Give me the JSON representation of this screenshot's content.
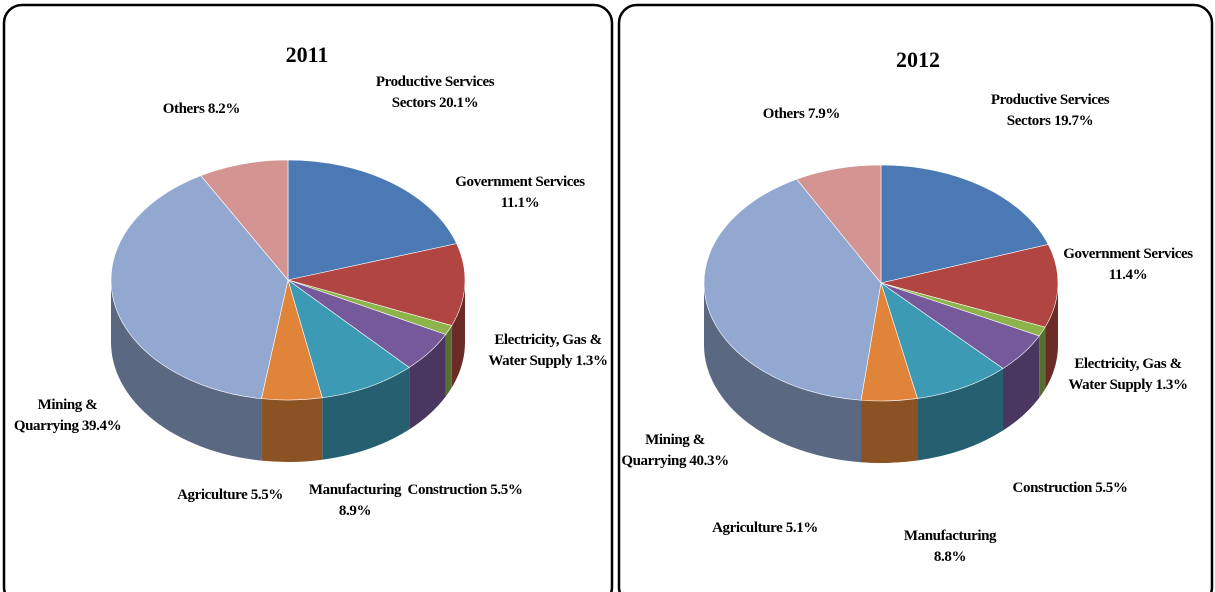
{
  "chart_data": [
    {
      "type": "pie",
      "title": "2011",
      "categories": [
        "Productive Services Sectors",
        "Government Services",
        "Electricity, Gas & Water Supply",
        "Construction",
        "Manufacturing",
        "Agriculture",
        "Mining & Quarrying",
        "Others"
      ],
      "values": [
        20.1,
        11.1,
        1.3,
        5.5,
        8.9,
        5.5,
        39.4,
        8.2
      ],
      "value_labels": [
        "20.1%",
        "11.1%",
        "1.3%",
        "5.5%",
        "8.9%",
        "5.5%",
        "39.4%",
        "8.2%"
      ],
      "colors": [
        "#4a79b4",
        "#b04541",
        "#8db34b",
        "#76599a",
        "#3d9ab5",
        "#e0843a",
        "#93a8d1",
        "#d49592"
      ]
    },
    {
      "type": "pie",
      "title": "2012",
      "categories": [
        "Productive Services Sectors",
        "Government Services",
        "Electricity, Gas & Water Supply",
        "Construction",
        "Manufacturing",
        "Agriculture",
        "Mining & Quarrying",
        "Others"
      ],
      "values": [
        19.7,
        11.4,
        1.3,
        5.5,
        8.8,
        5.1,
        40.3,
        7.9
      ],
      "value_labels": [
        "19.7%",
        "11.4%",
        "1.3%",
        "5.5%",
        "8.8%",
        "5.1%",
        "40.3%",
        "7.9%"
      ],
      "colors": [
        "#4a79b4",
        "#b04541",
        "#8db34b",
        "#76599a",
        "#3d9ab5",
        "#e0843a",
        "#93a8d1",
        "#d49592"
      ]
    }
  ]
}
